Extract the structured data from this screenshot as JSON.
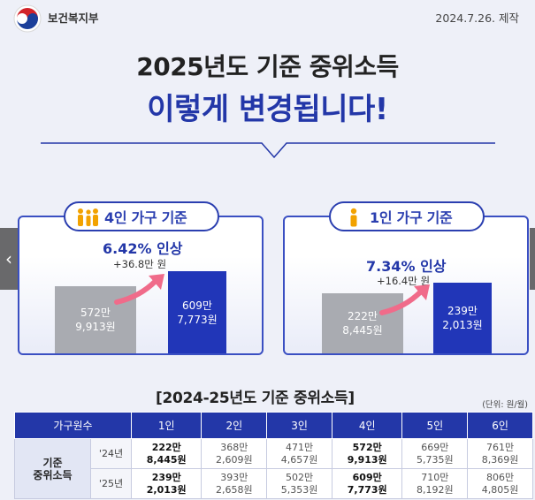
{
  "header": {
    "ministry": "보건복지부",
    "date": "2024.7.26. 제작"
  },
  "title": {
    "line1": "2025년도 기준 중위소득",
    "line2": "이렇게 변경됩니다!"
  },
  "cards": [
    {
      "label": "4인 가구 기준",
      "rate": "6.42% 인상",
      "delta": "+36.8만 원",
      "before_line1": "572만",
      "before_line2": "9,913원",
      "after_line1": "609만",
      "after_line2": "7,773원"
    },
    {
      "label": "1인 가구 기준",
      "rate": "7.34% 인상",
      "delta": "+16.4만 원",
      "before_line1": "222만",
      "before_line2": "8,445원",
      "after_line1": "239만",
      "after_line2": "2,013원"
    }
  ],
  "table": {
    "title": "[2024-25년도 기준 중위소득]",
    "unit": "(단위: 원/월)",
    "header_first": "가구원수",
    "columns": [
      "1인",
      "2인",
      "3인",
      "4인",
      "5인",
      "6인"
    ],
    "row_label_1": "기준",
    "row_label_2": "중위소득",
    "rows": [
      {
        "year": "'24년",
        "cells": [
          [
            "222만",
            "8,445원"
          ],
          [
            "368만",
            "2,609원"
          ],
          [
            "471만",
            "4,657원"
          ],
          [
            "572만",
            "9,913원"
          ],
          [
            "669만",
            "5,735원"
          ],
          [
            "761만",
            "8,369원"
          ]
        ]
      },
      {
        "year": "'25년",
        "cells": [
          [
            "239만",
            "2,013원"
          ],
          [
            "393만",
            "2,658원"
          ],
          [
            "502만",
            "5,353원"
          ],
          [
            "609만",
            "7,773원"
          ],
          [
            "710만",
            "8,192원"
          ],
          [
            "806만",
            "4,805원"
          ]
        ]
      }
    ]
  },
  "colors": {
    "brand_blue": "#2337a8",
    "bar_gray": "#a9abb1",
    "arrow_pink": "#f06b8a"
  },
  "icons": [
    "taegeuk-logo-icon",
    "family-icon",
    "person-icon",
    "chevron-left-icon",
    "arrow-up-right-icon"
  ]
}
